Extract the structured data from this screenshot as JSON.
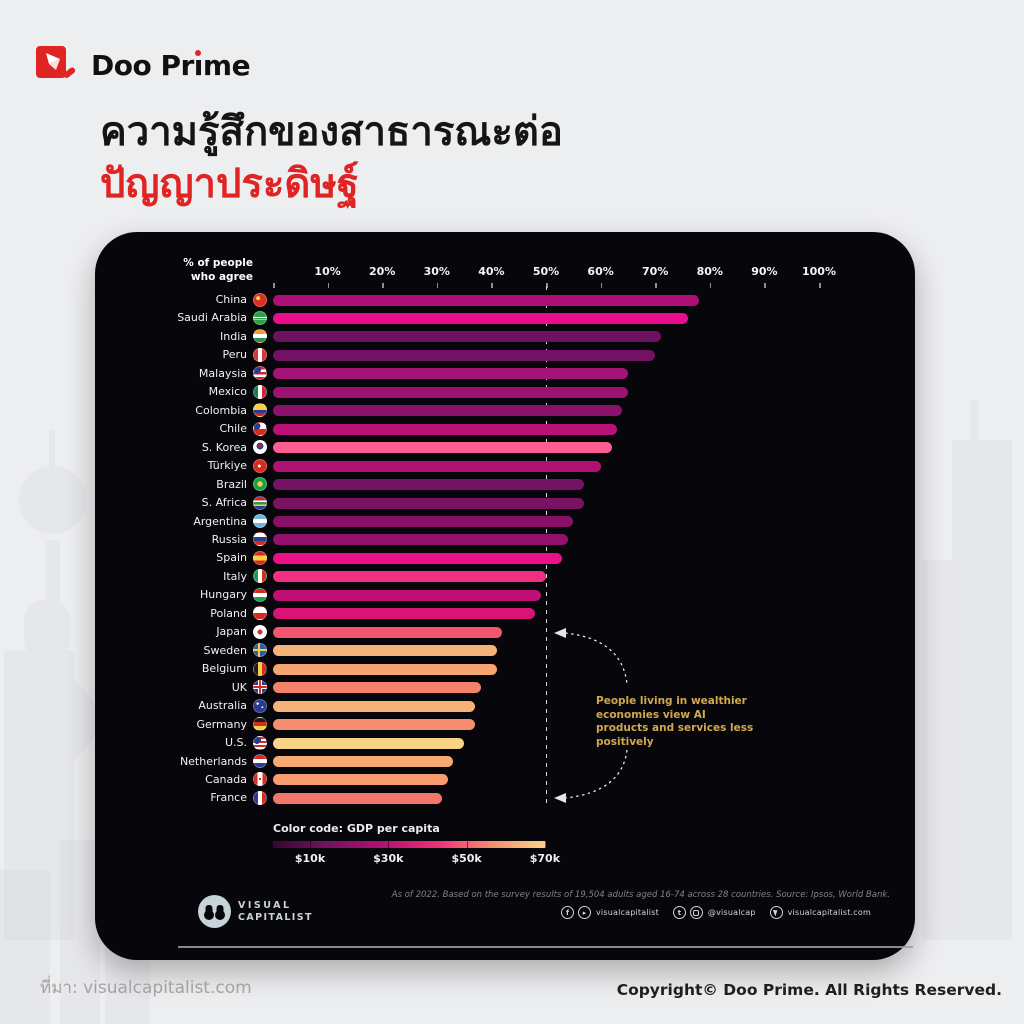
{
  "header": {
    "brand_pre": "Doo Pr",
    "brand_i": "ı",
    "brand_post": "me",
    "title_line1": "ความรู้สึกของสาธารณะต่อ",
    "title_line2": "ปัญญาประดิษฐ์"
  },
  "footer": {
    "source": "ที่มา: visualcapitalist.com",
    "copyright": "Copyright© Doo Prime. All Rights Reserved."
  },
  "colors": {
    "accent_red": "#e02424",
    "page_bg": "#edeef0",
    "panel_bg": "#07070b",
    "annotation_gold": "#d2a84f",
    "guide_line": "#d9d9d9",
    "legend_gradient": [
      "#33082f",
      "#6e1160",
      "#b30f72",
      "#ee2f77",
      "#f58d6e",
      "#fbd488"
    ]
  },
  "chart_data": {
    "type": "bar",
    "orientation": "horizontal",
    "axis_label_line1": "% of people",
    "axis_label_line2": "who agree",
    "x_ticks": [
      "10%",
      "20%",
      "30%",
      "40%",
      "50%",
      "60%",
      "70%",
      "80%",
      "90%",
      "100%"
    ],
    "xlim": [
      0,
      100
    ],
    "reference_line_pct": 50,
    "grid": false,
    "annotation": "People living in wealthier economies view AI products and services less positively",
    "legend": {
      "title": "Color code: GDP per capita",
      "labels": [
        "$10k",
        "$30k",
        "$50k",
        "$70k"
      ]
    },
    "source_note": "As of 2022. Based on the survey results of 19,504 adults aged 16-74 across 28 countries. Source: Ipsos, World Bank.",
    "publisher": {
      "name_line1": "VISUAL",
      "name_line2": "CAPITALIST",
      "social": [
        {
          "icon": "facebook-icon"
        },
        {
          "icon": "youtube-icon"
        },
        {
          "label": "visualcapitalist"
        },
        {
          "icon": "twitter-icon",
          "gap": true
        },
        {
          "icon": "instagram-icon"
        },
        {
          "label": "@visualcap"
        },
        {
          "icon": "cursor-icon",
          "gap": true
        },
        {
          "label": "visualcapitalist.com"
        }
      ]
    },
    "countries": [
      {
        "name": "China",
        "value": 78,
        "color": "#ac1075",
        "flag": "radial-gradient(circle at 35% 35%, #fadd4b 0 18%, rgba(0,0,0,0) 19%), #dd2d26"
      },
      {
        "name": "Saudi Arabia",
        "value": 76,
        "color": "#e90d8d",
        "flag": "linear-gradient(180deg,#2f9e49 42%,#ffffff 42% 50%,#2f9e49 50% 58%,#ffffff 58% 64%,#2f9e49 64%)"
      },
      {
        "name": "India",
        "value": 71,
        "color": "#6e1160",
        "flag": "linear-gradient(180deg,#f5993d 33%,#ffffff 33% 66%,#2e8b57 66%)"
      },
      {
        "name": "Peru",
        "value": 70,
        "color": "#731264",
        "flag": "linear-gradient(90deg,#d93434 33%,#ffffff 33% 66%,#d93434 66%)"
      },
      {
        "name": "Malaysia",
        "value": 65,
        "color": "#a51376",
        "flag": "radial-gradient(circle at 25% 25%, #2a3b8f 0 30%, rgba(0,0,0,0) 31%), repeating-linear-gradient(180deg,#cf2030 0 2.5px,#ffffff 2.5px 5px)"
      },
      {
        "name": "Mexico",
        "value": 65,
        "color": "#9d1271",
        "flag": "linear-gradient(90deg,#1c7a43 33%,#ffffff 33% 66%,#cf2030 66%)"
      },
      {
        "name": "Colombia",
        "value": 64,
        "color": "#8b1269",
        "flag": "linear-gradient(180deg,#f7cf46 0 50%,#2a3b8f 50% 75%,#cf2030 75%)"
      },
      {
        "name": "Chile",
        "value": 63,
        "color": "#ba1078",
        "flag": "radial-gradient(circle at 22% 25%, #2a3b8f 0 28%, rgba(0,0,0,0) 29%), linear-gradient(180deg,#ffffff 0 50%,#d52b1e 50%)"
      },
      {
        "name": "S. Korea",
        "value": 62,
        "color": "#fb5f92",
        "flag": "radial-gradient(circle at 50% 42%, #cf2030 0 20%, #2a3b8f 20% 36%, rgba(0,0,0,0) 37%), #ffffff"
      },
      {
        "name": "Türkiye",
        "value": 60,
        "color": "#b11173",
        "flag": "radial-gradient(circle at 45% 50%, #ffffff 0 16%, rgba(0,0,0,0) 17%), #d52b1e"
      },
      {
        "name": "Brazil",
        "value": 57,
        "color": "#751261",
        "flag": "radial-gradient(circle at 50% 50%, #f7cf46 0 32%, rgba(0,0,0,0) 33%), #1f9d4b"
      },
      {
        "name": "S. Africa",
        "value": 57,
        "color": "#791263",
        "flag": "linear-gradient(180deg,#cf2030 0 30%,#ffffff 30% 42%,#1f9d4b 42% 62%,#f7cf46 62% 74%,#2a3b8f 74%)"
      },
      {
        "name": "Argentina",
        "value": 55,
        "color": "#861167",
        "flag": "linear-gradient(180deg,#6fb3e0 0 33%,#ffffff 33% 66%,#6fb3e0 66%)"
      },
      {
        "name": "Russia",
        "value": 54,
        "color": "#91116b",
        "flag": "linear-gradient(180deg,#ffffff 0 33%,#2a3b8f 33% 66%,#d52b1e 66%)"
      },
      {
        "name": "Spain",
        "value": 53,
        "color": "#eb0f89",
        "flag": "linear-gradient(180deg,#d52b1e 0 28%,#f7cf46 28% 72%,#d52b1e 72%)"
      },
      {
        "name": "Italy",
        "value": 50,
        "color": "#f23082",
        "flag": "linear-gradient(90deg,#1f9d4b 33%,#ffffff 33% 66%,#d52b1e 66%)"
      },
      {
        "name": "Hungary",
        "value": 49,
        "color": "#bf0f74",
        "flag": "linear-gradient(180deg,#d52b1e 0 33%,#ffffff 33% 66%,#1f9d4b 66%)"
      },
      {
        "name": "Poland",
        "value": 48,
        "color": "#d91475",
        "flag": "linear-gradient(180deg,#ffffff 0 50%,#d52b1e 50%)"
      },
      {
        "name": "Japan",
        "value": 42,
        "color": "#f25570",
        "flag": "radial-gradient(circle at 50% 50%, #d52b1e 0 28%, rgba(0,0,0,0) 29%), #ffffff"
      },
      {
        "name": "Sweden",
        "value": 41,
        "color": "#f6b377",
        "flag": "linear-gradient(90deg, rgba(0,0,0,0) 0 35%, #f7cf46 35% 52%, rgba(0,0,0,0) 52%), linear-gradient(180deg, rgba(0,0,0,0) 0 40%, #f7cf46 40% 60%, rgba(0,0,0,0) 60%), #2a5fa5"
      },
      {
        "name": "Belgium",
        "value": 41,
        "color": "#f6a471",
        "flag": "linear-gradient(90deg,#1a1a1a 33%,#f7cf46 33% 66%,#d52b1e 66%)"
      },
      {
        "name": "UK",
        "value": 38,
        "color": "#f4816a",
        "flag": "linear-gradient(0deg, rgba(0,0,0,0) 41%, #d52b1e 41% 59%, rgba(0,0,0,0) 59%), linear-gradient(90deg, rgba(0,0,0,0) 41%, #d52b1e 41% 59%, rgba(0,0,0,0) 59%), linear-gradient(0deg, rgba(0,0,0,0) 33%, #ffffff 33% 67%, rgba(0,0,0,0) 67%), linear-gradient(90deg, rgba(0,0,0,0) 33%, #ffffff 33% 67%, rgba(0,0,0,0) 67%), #2a3b8f"
      },
      {
        "name": "Australia",
        "value": 37,
        "color": "#f6b377",
        "flag": "radial-gradient(circle at 70% 60%, #ffffff 0 8%, rgba(0,0,0,0) 9%), radial-gradient(circle at 30% 30%, #ffffff 0 10%, rgba(0,0,0,0) 11%), #2a3b8f"
      },
      {
        "name": "Germany",
        "value": 37,
        "color": "#f58d6e",
        "flag": "linear-gradient(180deg,#1a1a1a 0 33%,#d52b1e 33% 66%,#f7cf46 66%)"
      },
      {
        "name": "U.S.",
        "value": 35,
        "color": "#f9d486",
        "flag": "radial-gradient(circle at 25% 25%, #2a3b8f 0 30%, rgba(0,0,0,0) 31%), repeating-linear-gradient(180deg,#d52b1e 0 2px,#ffffff 2px 4px)"
      },
      {
        "name": "Netherlands",
        "value": 33,
        "color": "#f6aa73",
        "flag": "linear-gradient(180deg,#d52b1e 0 33%,#ffffff 33% 66%,#2a3b8f 66%)"
      },
      {
        "name": "Canada",
        "value": 32,
        "color": "#f69c6f",
        "flag": "radial-gradient(circle at 50% 50%, #d52b1e 0 14%, rgba(0,0,0,0) 15%), linear-gradient(90deg,#d52b1e 0 30%,#ffffff 30% 70%,#d52b1e 70%)"
      },
      {
        "name": "France",
        "value": 31,
        "color": "#f3766b",
        "flag": "linear-gradient(90deg,#2a3b8f 33%,#ffffff 33% 66%,#d52b1e 66%)"
      }
    ]
  }
}
